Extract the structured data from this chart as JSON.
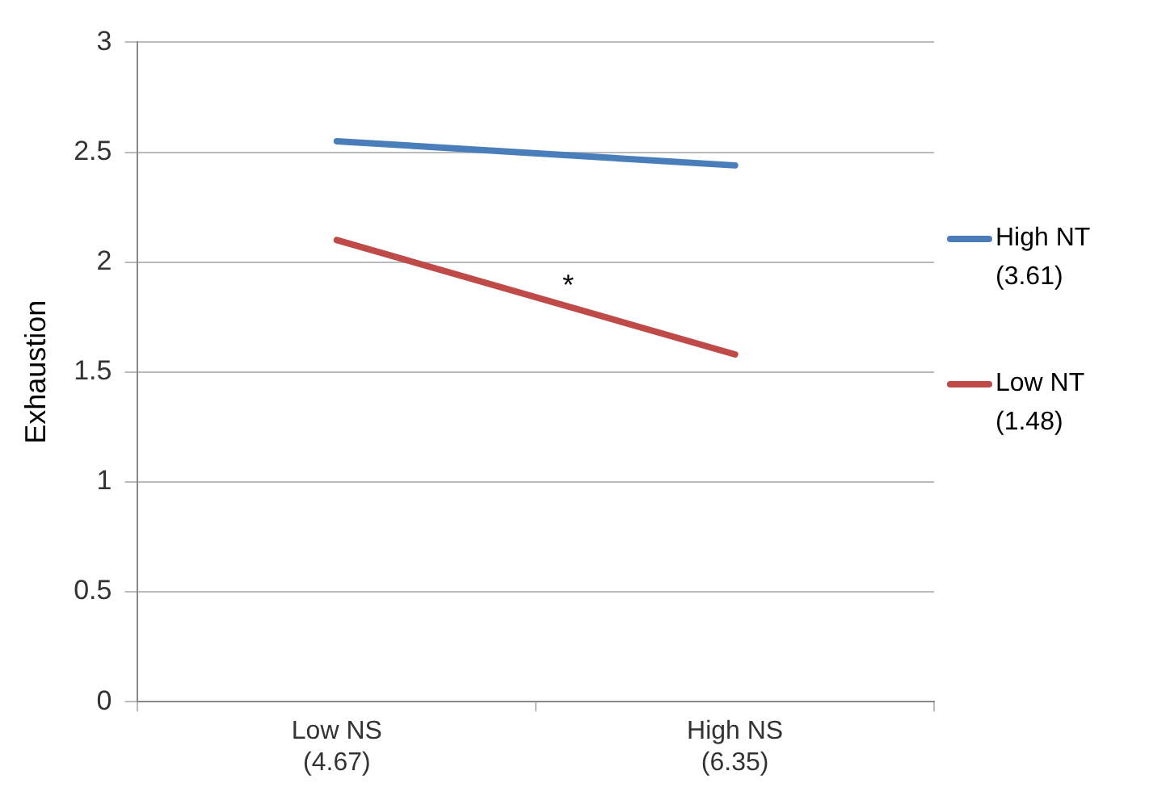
{
  "chart_data": {
    "type": "line",
    "ylabel": "Exhaustion",
    "categories": [
      "Low NS (4.67)",
      "High NS (6.35)"
    ],
    "series": [
      {
        "name": "High NT (3.61)",
        "color": "#4a7ebb",
        "values": [
          2.55,
          2.44
        ]
      },
      {
        "name": "Low NT (1.48)",
        "color": "#be4b48",
        "values": [
          2.1,
          1.58
        ]
      }
    ],
    "ylim": [
      0,
      3
    ],
    "yticks": [
      0,
      0.5,
      1,
      1.5,
      2,
      2.5,
      3
    ],
    "grid": "y",
    "legend": "right",
    "marker": "none",
    "line_style": "solid",
    "annotations": [
      "*"
    ]
  }
}
